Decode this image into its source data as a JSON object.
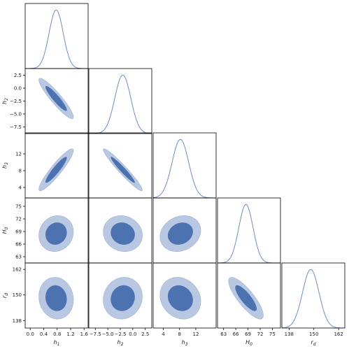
{
  "chart_data": {
    "type": "corner",
    "colors": {
      "line": "#6b8ec9",
      "outer": "#b8c8e2",
      "inner": "#4d72b0",
      "axis": "#000000"
    },
    "parameters": [
      {
        "id": "h1",
        "label_base": "h",
        "label_sub": "1",
        "mean": 0.77,
        "sd": 0.21,
        "range": [
          -0.15,
          1.72
        ],
        "ticks": [
          0.0,
          0.4,
          0.8,
          1.2,
          1.6
        ],
        "tick_labels": [
          "0.0",
          "0.4",
          "0.8",
          "1.2",
          "1.6"
        ]
      },
      {
        "id": "h2",
        "label_base": "h",
        "label_sub": "2",
        "mean": -2.0,
        "sd": 1.6,
        "range": [
          -8.8,
          3.8
        ],
        "ticks": [
          -7.5,
          -5.0,
          -2.5,
          0.0,
          2.5
        ],
        "tick_labels": [
          "−7.5",
          "−5.0",
          "−2.5",
          "0.0",
          "2.5"
        ]
      },
      {
        "id": "h3",
        "label_base": "h",
        "label_sub": "3",
        "mean": 8.2,
        "sd": 2.05,
        "range": [
          1.5,
          17.0
        ],
        "ticks": [
          4,
          8,
          12
        ],
        "tick_labels": [
          "4",
          "8",
          "12"
        ]
      },
      {
        "id": "H0",
        "label_base": "H",
        "label_sub": "0",
        "mean": 68.5,
        "sd": 1.75,
        "range": [
          61.5,
          77.0
        ],
        "ticks": [
          63,
          66,
          69,
          72,
          75
        ],
        "tick_labels": [
          "63",
          "66",
          "69",
          "72",
          "75"
        ]
      },
      {
        "id": "rd",
        "label_base": "r",
        "label_sub": "d",
        "mean": 148.5,
        "sd": 4.0,
        "range": [
          134.5,
          165.0
        ],
        "ticks": [
          138,
          150,
          162
        ],
        "tick_labels": [
          "138",
          "150",
          "162"
        ]
      }
    ],
    "correlations": [
      {
        "pair": [
          "h1",
          "h2"
        ],
        "rho": -0.92
      },
      {
        "pair": [
          "h1",
          "h3"
        ],
        "rho": 0.92
      },
      {
        "pair": [
          "h2",
          "h3"
        ],
        "rho": -0.96
      },
      {
        "pair": [
          "h1",
          "H0"
        ],
        "rho": 0.1
      },
      {
        "pair": [
          "h2",
          "H0"
        ],
        "rho": -0.1
      },
      {
        "pair": [
          "h3",
          "H0"
        ],
        "rho": 0.18
      },
      {
        "pair": [
          "h1",
          "rd"
        ],
        "rho": -0.08
      },
      {
        "pair": [
          "h2",
          "rd"
        ],
        "rho": 0.08
      },
      {
        "pair": [
          "h3",
          "rd"
        ],
        "rho": -0.15
      },
      {
        "pair": [
          "H0",
          "rd"
        ],
        "rho": -0.82
      }
    ],
    "contour_levels": [
      "68%",
      "95%"
    ],
    "grid": false,
    "legend": "none"
  }
}
